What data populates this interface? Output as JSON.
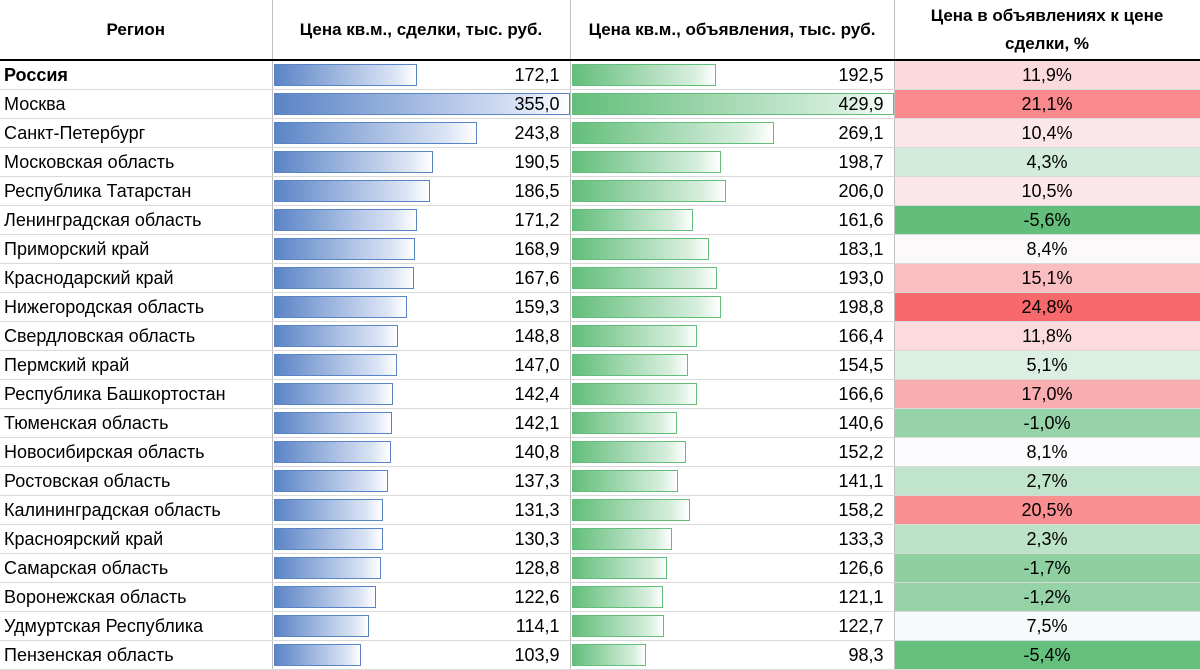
{
  "headers": {
    "region": "Регион",
    "deal_price": "Цена кв.м., сделки, тыс. руб.",
    "ads_price": "Цена кв.м., объявления, тыс. руб.",
    "ratio": "Цена в объявлениях к цене сделки, %"
  },
  "colors": {
    "deal_bar": "#5b84c6",
    "ads_bar": "#63be7b",
    "pct_red": "#f8696b",
    "pct_green": "#63be7b",
    "pct_neutral": "#fcfcff"
  },
  "rows": [
    {
      "region": "Россия",
      "deal": "172,1",
      "ads": "192,5",
      "pct": "11,9%",
      "deal_v": 172.1,
      "ads_v": 192.5,
      "pct_v": 11.9,
      "bold": true
    },
    {
      "region": "Москва",
      "deal": "355,0",
      "ads": "429,9",
      "pct": "21,1%",
      "deal_v": 355.0,
      "ads_v": 429.9,
      "pct_v": 21.1
    },
    {
      "region": "Санкт-Петербург",
      "deal": "243,8",
      "ads": "269,1",
      "pct": "10,4%",
      "deal_v": 243.8,
      "ads_v": 269.1,
      "pct_v": 10.4
    },
    {
      "region": "Московская область",
      "deal": "190,5",
      "ads": "198,7",
      "pct": "4,3%",
      "deal_v": 190.5,
      "ads_v": 198.7,
      "pct_v": 4.3
    },
    {
      "region": "Республика Татарстан",
      "deal": "186,5",
      "ads": "206,0",
      "pct": "10,5%",
      "deal_v": 186.5,
      "ads_v": 206.0,
      "pct_v": 10.5
    },
    {
      "region": "Ленинградская область",
      "deal": "171,2",
      "ads": "161,6",
      "pct": "-5,6%",
      "deal_v": 171.2,
      "ads_v": 161.6,
      "pct_v": -5.6
    },
    {
      "region": "Приморский край",
      "deal": "168,9",
      "ads": "183,1",
      "pct": "8,4%",
      "deal_v": 168.9,
      "ads_v": 183.1,
      "pct_v": 8.4
    },
    {
      "region": "Краснодарский край",
      "deal": "167,6",
      "ads": "193,0",
      "pct": "15,1%",
      "deal_v": 167.6,
      "ads_v": 193.0,
      "pct_v": 15.1
    },
    {
      "region": "Нижегородская область",
      "deal": "159,3",
      "ads": "198,8",
      "pct": "24,8%",
      "deal_v": 159.3,
      "ads_v": 198.8,
      "pct_v": 24.8
    },
    {
      "region": "Свердловская область",
      "deal": "148,8",
      "ads": "166,4",
      "pct": "11,8%",
      "deal_v": 148.8,
      "ads_v": 166.4,
      "pct_v": 11.8
    },
    {
      "region": "Пермский край",
      "deal": "147,0",
      "ads": "154,5",
      "pct": "5,1%",
      "deal_v": 147.0,
      "ads_v": 154.5,
      "pct_v": 5.1
    },
    {
      "region": "Республика Башкортостан",
      "deal": "142,4",
      "ads": "166,6",
      "pct": "17,0%",
      "deal_v": 142.4,
      "ads_v": 166.6,
      "pct_v": 17.0
    },
    {
      "region": "Тюменская область",
      "deal": "142,1",
      "ads": "140,6",
      "pct": "-1,0%",
      "deal_v": 142.1,
      "ads_v": 140.6,
      "pct_v": -1.0
    },
    {
      "region": "Новосибирская область",
      "deal": "140,8",
      "ads": "152,2",
      "pct": "8,1%",
      "deal_v": 140.8,
      "ads_v": 152.2,
      "pct_v": 8.1
    },
    {
      "region": "Ростовская область",
      "deal": "137,3",
      "ads": "141,1",
      "pct": "2,7%",
      "deal_v": 137.3,
      "ads_v": 141.1,
      "pct_v": 2.7
    },
    {
      "region": "Калининградская область",
      "deal": "131,3",
      "ads": "158,2",
      "pct": "20,5%",
      "deal_v": 131.3,
      "ads_v": 158.2,
      "pct_v": 20.5
    },
    {
      "region": "Красноярский край",
      "deal": "130,3",
      "ads": "133,3",
      "pct": "2,3%",
      "deal_v": 130.3,
      "ads_v": 133.3,
      "pct_v": 2.3
    },
    {
      "region": "Самарская область",
      "deal": "128,8",
      "ads": "126,6",
      "pct": "-1,7%",
      "deal_v": 128.8,
      "ads_v": 126.6,
      "pct_v": -1.7
    },
    {
      "region": "Воронежская область",
      "deal": "122,6",
      "ads": "121,1",
      "pct": "-1,2%",
      "deal_v": 122.6,
      "ads_v": 121.1,
      "pct_v": -1.2
    },
    {
      "region": "Удмуртская Республика",
      "deal": "114,1",
      "ads": "122,7",
      "pct": "7,5%",
      "deal_v": 114.1,
      "ads_v": 122.7,
      "pct_v": 7.5
    },
    {
      "region": "Пензенская область",
      "deal": "103,9",
      "ads": "98,3",
      "pct": "-5,4%",
      "deal_v": 103.9,
      "ads_v": 98.3,
      "pct_v": -5.4
    }
  ]
}
